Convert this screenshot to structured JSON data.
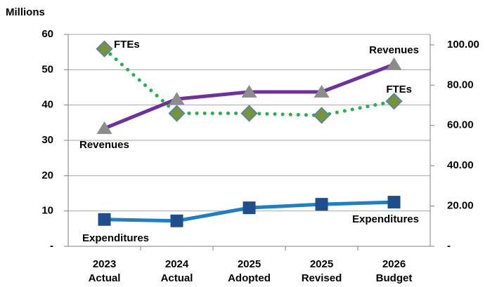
{
  "chart_data": {
    "type": "line",
    "y_axis_label": "Millions",
    "categories": [
      [
        "2023",
        "Actual"
      ],
      [
        "2024",
        "Actual"
      ],
      [
        "2025",
        "Adopted"
      ],
      [
        "2025",
        "Revised"
      ],
      [
        "2026",
        "Budget"
      ]
    ],
    "series": [
      {
        "name": "Revenues",
        "color": "#7030a0",
        "marker_color": "#8c8c8c",
        "marker": "triangle",
        "values": [
          33.4,
          41.7,
          43.7,
          43.7,
          51.5
        ]
      },
      {
        "name": "Expenditures",
        "color": "#1f7fc4",
        "marker_color": "#1f4e8c",
        "marker": "square",
        "values": [
          7.6,
          7.2,
          10.9,
          11.9,
          12.5
        ]
      },
      {
        "name": "FTEs",
        "color": "#22b14c",
        "marker_color": "#77933c",
        "marker": "diamond",
        "dotted": true,
        "axis": "y2",
        "values": [
          98,
          66,
          66,
          65,
          72
        ]
      }
    ],
    "annotations": [
      {
        "text": "FTEs"
      },
      {
        "text": "Revenues"
      },
      {
        "text": "Revenues"
      },
      {
        "text": "FTEs"
      },
      {
        "text": "Expenditures"
      },
      {
        "text": "Expenditures"
      }
    ],
    "ylim": [
      0,
      60
    ],
    "yticks": [
      {
        "value": 0,
        "label": "-"
      },
      10,
      20,
      30,
      40,
      50,
      60
    ],
    "y2lim": [
      0,
      105.2
    ],
    "y2ticks": [
      {
        "value": 0,
        "label": "-"
      },
      {
        "value": 20,
        "label": "20.00"
      },
      {
        "value": 40,
        "label": "40.00"
      },
      {
        "value": 60,
        "label": "60.00"
      },
      {
        "value": 80,
        "label": "80.00"
      },
      {
        "value": 100,
        "label": "100.00"
      }
    ],
    "grid": true
  }
}
